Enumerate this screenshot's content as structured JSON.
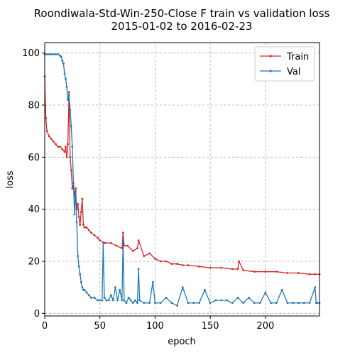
{
  "chart_data": {
    "type": "line",
    "title": "Roondiwala-Std-Win-250-Close F train vs validation loss",
    "subtitle": "2015-01-02 to 2016-02-23",
    "xlabel": "epoch",
    "ylabel": "loss",
    "xlim": [
      0,
      249
    ],
    "ylim": [
      -1,
      104
    ],
    "xticks": [
      0,
      50,
      100,
      150,
      200
    ],
    "yticks": [
      0,
      20,
      40,
      60,
      80,
      100
    ],
    "grid": true,
    "grid_style": "dashed",
    "legend_position": "top-right",
    "series": [
      {
        "name": "Train",
        "color": "#d62728",
        "x": [
          0,
          1,
          2,
          4,
          6,
          8,
          10,
          12,
          14,
          16,
          18,
          19,
          20,
          21,
          22,
          23,
          24,
          25,
          26,
          27,
          28,
          29,
          30,
          31,
          32,
          33,
          34,
          35,
          36,
          38,
          40,
          42,
          45,
          48,
          50,
          55,
          60,
          65,
          70,
          71,
          72,
          75,
          80,
          84,
          85,
          90,
          95,
          100,
          105,
          110,
          115,
          120,
          125,
          130,
          140,
          150,
          160,
          170,
          175,
          176,
          180,
          190,
          200,
          210,
          220,
          230,
          240,
          245,
          249
        ],
        "values": [
          91,
          75,
          70,
          68,
          67,
          66,
          65,
          64,
          64,
          63,
          62,
          64,
          60,
          65,
          85,
          60,
          55,
          48,
          49,
          45,
          48,
          40,
          42,
          37,
          34,
          39,
          44,
          34,
          33,
          33,
          32,
          31,
          30,
          29,
          28,
          27,
          27,
          26,
          25,
          31,
          26,
          26,
          24,
          25,
          28,
          22,
          23,
          21,
          20,
          20,
          19,
          19,
          18.5,
          18.5,
          18,
          17.5,
          17.5,
          17,
          17,
          20,
          16.5,
          16,
          16,
          16,
          15.5,
          15.5,
          15,
          15,
          15
        ]
      },
      {
        "name": "Val",
        "color": "#1f77b4",
        "x": [
          0,
          2,
          4,
          6,
          8,
          10,
          12,
          14,
          15,
          16,
          17,
          18,
          19,
          20,
          21,
          22,
          23,
          24,
          25,
          26,
          27,
          28,
          29,
          30,
          31,
          32,
          33,
          34,
          35,
          36,
          38,
          40,
          42,
          45,
          48,
          50,
          52,
          53,
          54,
          56,
          58,
          60,
          62,
          64,
          66,
          68,
          70,
          71,
          72,
          74,
          76,
          78,
          80,
          82,
          84,
          85,
          86,
          90,
          95,
          98,
          100,
          105,
          110,
          115,
          120,
          125,
          130,
          135,
          140,
          145,
          150,
          155,
          160,
          165,
          170,
          175,
          180,
          185,
          190,
          195,
          200,
          205,
          210,
          215,
          220,
          225,
          230,
          235,
          240,
          245,
          246,
          247,
          249
        ],
        "values": [
          99.5,
          99.5,
          99.5,
          99.5,
          99.5,
          99.5,
          99.5,
          99,
          98.5,
          97,
          96,
          92,
          90,
          87,
          82,
          84,
          78,
          72,
          64,
          50,
          38,
          47,
          35,
          22,
          18,
          15,
          12,
          10,
          9,
          9,
          8,
          7,
          6,
          6,
          5,
          5,
          5,
          27,
          6,
          5,
          5,
          7,
          5,
          10,
          5,
          9,
          5,
          28,
          5,
          4,
          6,
          5,
          4,
          5,
          4,
          17,
          5,
          4,
          4,
          12,
          4,
          4,
          6,
          4,
          3,
          10,
          4,
          4,
          4,
          9,
          4,
          5,
          5,
          5,
          4,
          6,
          4,
          6,
          4,
          4,
          8,
          4,
          4,
          9,
          4,
          4,
          4,
          4,
          4,
          10,
          4,
          4,
          4
        ]
      }
    ]
  }
}
